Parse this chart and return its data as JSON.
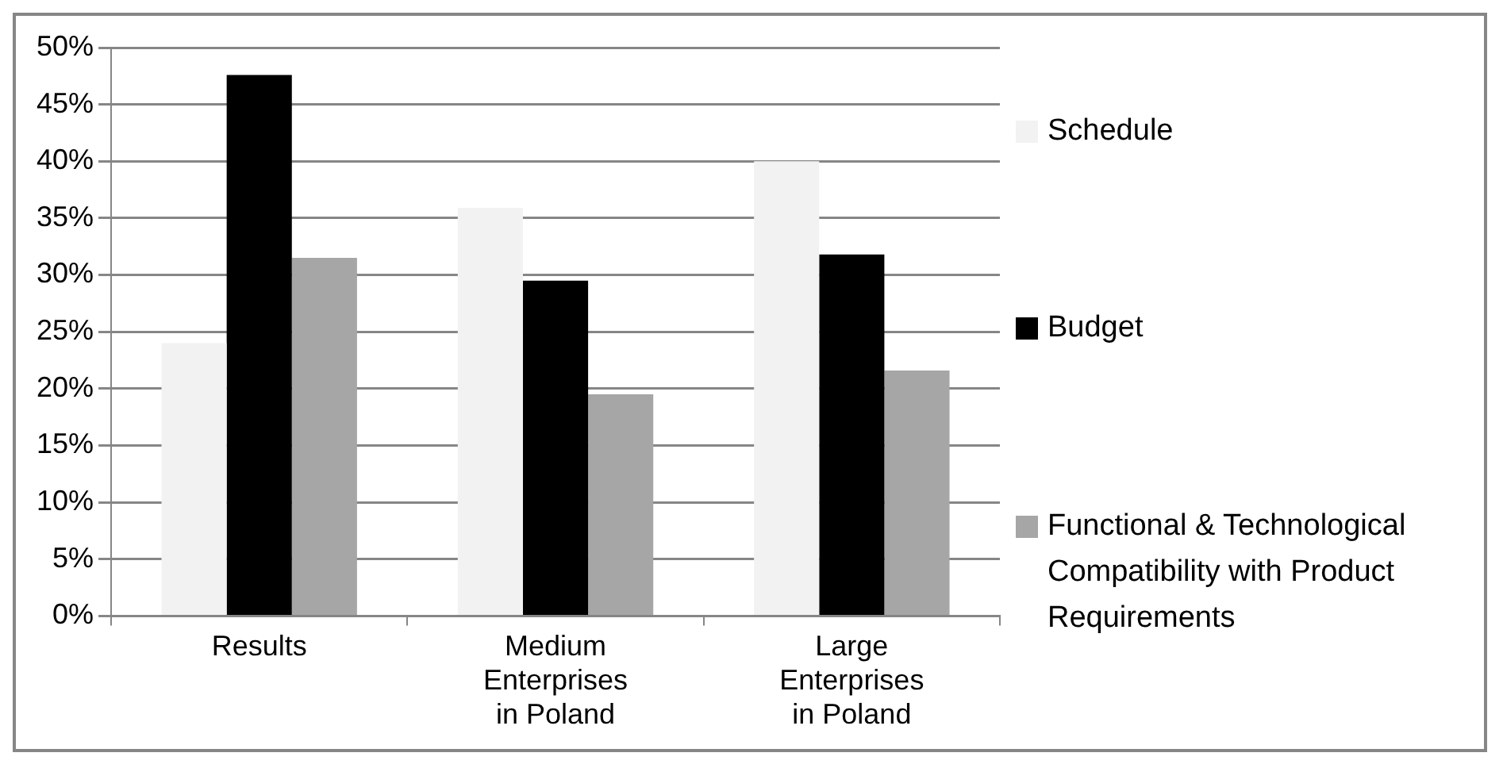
{
  "chart_data": {
    "type": "bar",
    "categories": [
      "Results",
      "Medium Enterprises in Poland",
      "Large Enterprises in Poland"
    ],
    "series": [
      {
        "name": "Schedule",
        "color": "#f2f2f2",
        "values": [
          24,
          35.9,
          40
        ]
      },
      {
        "name": "Budget",
        "color": "#000000",
        "values": [
          47.6,
          29.5,
          31.8
        ]
      },
      {
        "name": "Functional & Technological Compatibility with Product Requirements",
        "color": "#a6a6a6",
        "values": [
          31.5,
          19.5,
          21.6
        ]
      }
    ],
    "ylim": [
      0,
      50
    ],
    "yticks": [
      {
        "value": 0,
        "label": "0%"
      },
      {
        "value": 5,
        "label": "5%"
      },
      {
        "value": 10,
        "label": "10%"
      },
      {
        "value": 15,
        "label": "15%"
      },
      {
        "value": 20,
        "label": "20%"
      },
      {
        "value": 25,
        "label": "25%"
      },
      {
        "value": 30,
        "label": "30%"
      },
      {
        "value": 35,
        "label": "35%"
      },
      {
        "value": 40,
        "label": "40%"
      },
      {
        "value": 45,
        "label": "45%"
      },
      {
        "value": 50,
        "label": "50%"
      }
    ],
    "grid": "y",
    "legend": "right"
  }
}
